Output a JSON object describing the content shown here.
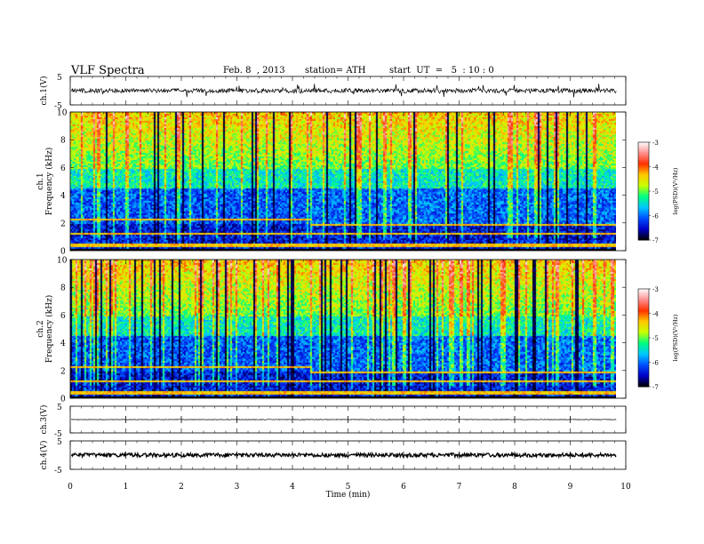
{
  "header": {
    "title": "VLF  Spectra",
    "date": "Feb. 8  , 2013",
    "station": "station= ATH",
    "start": "start  UT  =   5  : 10 : 0"
  },
  "chart_data": [
    {
      "type": "line",
      "panel": "ch1-waveform",
      "ylabel": "ch.1(V)",
      "yticks": [
        "5",
        "-5"
      ],
      "ylim": [
        -5,
        5
      ],
      "xlim": [
        0,
        10
      ],
      "note_level": 0
    },
    {
      "type": "heatmap",
      "panel": "ch1-spectrogram",
      "ylabel": "ch.1\nFrequency (kHz)",
      "ylabel_lines": [
        "ch.1",
        "Frequency  (kHz)"
      ],
      "yticks": [
        "0",
        "2",
        "4",
        "6",
        "8",
        "10"
      ],
      "ylim": [
        0,
        10
      ],
      "xlim": [
        0,
        10
      ],
      "data_end_min": 9.83,
      "colorbar": {
        "label": "log(PSD)(V²/Hz)",
        "ticks": [
          "-3",
          "-4",
          "-5",
          "-6",
          "-7"
        ],
        "range": [
          -7,
          -3
        ],
        "colors": [
          "#000000",
          "#0000c8",
          "#0050ff",
          "#00c8ff",
          "#00ff80",
          "#c8ff00",
          "#ffc800",
          "#ff3000",
          "#ff9090",
          "#ffffff"
        ]
      }
    },
    {
      "type": "heatmap",
      "panel": "ch2-spectrogram",
      "ylabel_lines": [
        "ch.2",
        "Frequency  (kHz)"
      ],
      "yticks": [
        "0",
        "2",
        "4",
        "6",
        "8",
        "10"
      ],
      "ylim": [
        0,
        10
      ],
      "xlim": [
        0,
        10
      ],
      "data_end_min": 9.83,
      "colorbar": {
        "label": "log(PSD)(V²/Hz)",
        "ticks": [
          "-3",
          "-4",
          "-5",
          "-6",
          "-7"
        ],
        "range": [
          -7,
          -3
        ]
      }
    },
    {
      "type": "line",
      "panel": "ch3-waveform",
      "ylabel": "ch.3(V)",
      "yticks": [
        "5",
        "-5"
      ],
      "ylim": [
        -5,
        5
      ],
      "xlim": [
        0,
        10
      ],
      "note_level": 0
    },
    {
      "type": "line",
      "panel": "ch4-waveform",
      "ylabel": "ch.4(V)",
      "yticks": [
        "5",
        "-5"
      ],
      "ylim": [
        -5,
        5
      ],
      "xlim": [
        0,
        10
      ],
      "note_level": 0
    }
  ],
  "xaxis": {
    "label": "Time  (min)",
    "ticks": [
      "0",
      "1",
      "2",
      "3",
      "4",
      "5",
      "6",
      "7",
      "8",
      "9",
      "10"
    ]
  }
}
